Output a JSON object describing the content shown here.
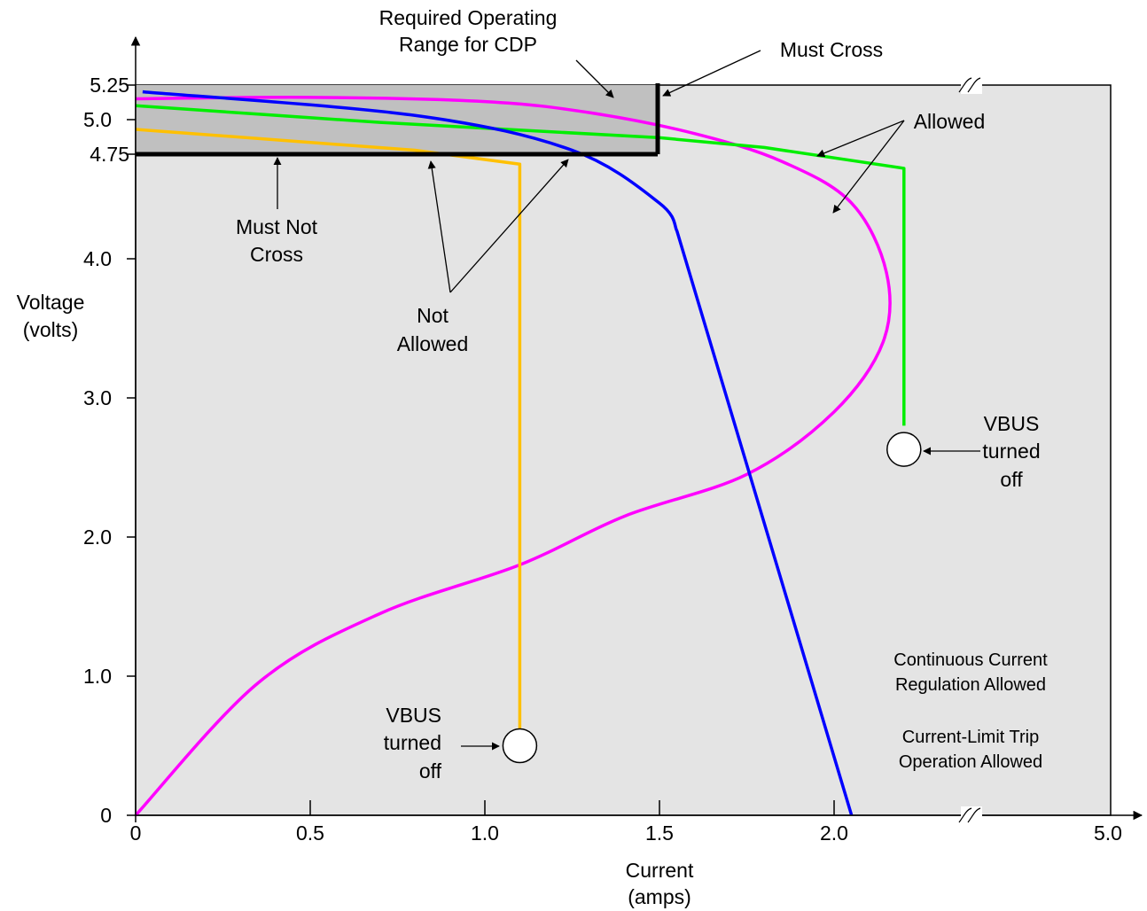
{
  "chart_data": {
    "type": "line",
    "xlabel": [
      "Current",
      "(amps)"
    ],
    "ylabel": [
      "Voltage",
      "(volts)"
    ],
    "x_ticks": [
      "0",
      "0.5",
      "1.0",
      "1.5",
      "2.0",
      "5.0"
    ],
    "y_ticks": [
      "0",
      "1.0",
      "2.0",
      "3.0",
      "4.0",
      "4.75",
      "5.0",
      "5.25"
    ],
    "xlim": [
      0,
      5.0
    ],
    "ylim": [
      0,
      5.25
    ],
    "axis_break": "between 2.0 and 5.0 on the current axis",
    "grid": false,
    "required_range": {
      "current_max": 1.5,
      "voltage_min": 4.75,
      "voltage_max": 5.25
    },
    "series": [
      {
        "color": "#ff00ff",
        "points": [
          [
            0,
            5.15
          ],
          [
            0.5,
            5.16
          ],
          [
            1.0,
            5.13
          ],
          [
            1.3,
            5.05
          ],
          [
            1.6,
            4.9
          ],
          [
            1.85,
            4.7
          ],
          [
            2.05,
            4.4
          ],
          [
            2.15,
            3.9
          ],
          [
            2.14,
            3.4
          ],
          [
            2.0,
            2.9
          ],
          [
            1.75,
            2.45
          ],
          [
            1.4,
            2.15
          ],
          [
            1.1,
            1.8
          ],
          [
            0.7,
            1.45
          ],
          [
            0.35,
            0.95
          ],
          [
            0,
            0
          ]
        ]
      },
      {
        "color": "#00ee00",
        "points": [
          [
            0,
            5.1
          ],
          [
            0.7,
            4.98
          ],
          [
            1.5,
            4.87
          ],
          [
            1.8,
            4.8
          ],
          [
            2.2,
            4.65
          ],
          [
            2.2,
            2.8
          ]
        ]
      },
      {
        "color": "#ffc000",
        "points": [
          [
            0,
            4.93
          ],
          [
            0.8,
            4.78
          ],
          [
            1.1,
            4.68
          ],
          [
            1.1,
            0.6
          ]
        ]
      },
      {
        "color": "#0000ff",
        "points": [
          [
            0.02,
            5.2
          ],
          [
            0.8,
            5.03
          ],
          [
            1.25,
            4.78
          ],
          [
            1.5,
            4.4
          ],
          [
            1.55,
            4.2
          ],
          [
            2.05,
            0
          ]
        ]
      }
    ],
    "markers": [
      {
        "label": [
          "VBUS",
          "turned",
          "off"
        ],
        "x": 2.2,
        "y": 2.63,
        "side": "right"
      },
      {
        "label": [
          "VBUS",
          "turned",
          "off"
        ],
        "x": 1.1,
        "y": 0.5,
        "side": "left"
      }
    ],
    "annotations": {
      "required_range": [
        "Required Operating",
        "Range for CDP"
      ],
      "must_cross": "Must Cross",
      "must_not_cross": [
        "Must Not",
        "Cross"
      ],
      "not_allowed": [
        "Not",
        "Allowed"
      ],
      "allowed": "Allowed",
      "region_note_1": [
        "Continuous Current",
        "Regulation Allowed"
      ],
      "region_note_2": [
        "Current-Limit Trip",
        "Operation Allowed"
      ]
    }
  }
}
